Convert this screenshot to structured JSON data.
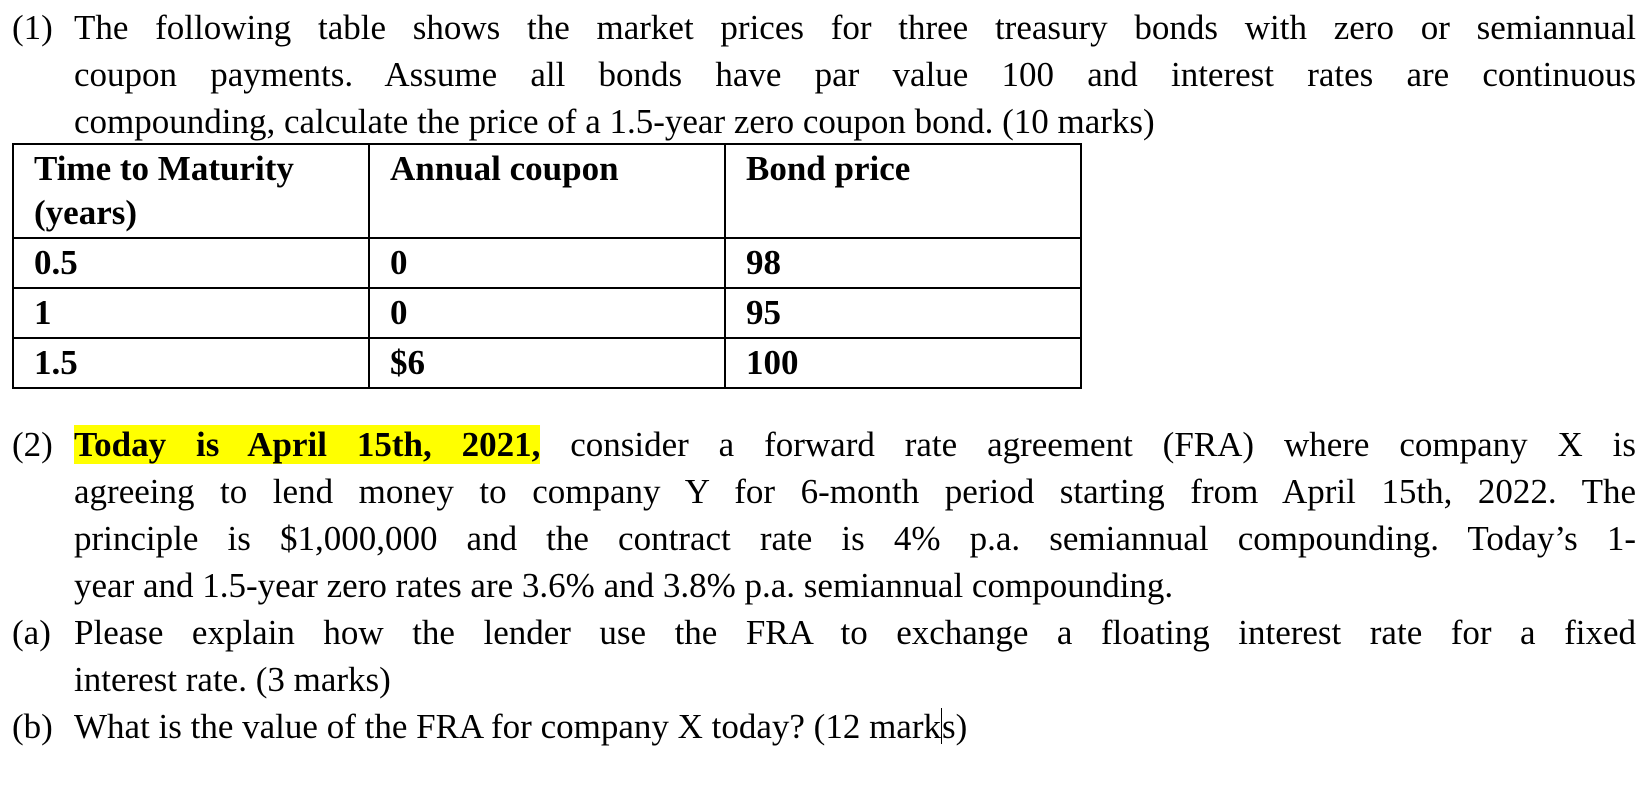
{
  "question1": {
    "number": "(1)",
    "line1": "The following table shows the market prices for three treasury bonds with zero or semiannual",
    "line2": "coupon payments. Assume all bonds have par value 100 and interest rates are continuous",
    "line3": "compounding, calculate the price of a 1.5-year zero coupon bond. (10 marks)"
  },
  "table": {
    "headers": [
      "Time to Maturity (years)",
      "Annual coupon",
      "Bond price"
    ],
    "rows": [
      [
        "0.5",
        "0",
        "98"
      ],
      [
        "1",
        "0",
        "95"
      ],
      [
        "1.5",
        "$6",
        "100"
      ]
    ]
  },
  "question2": {
    "number": "(2)",
    "highlight": "Today is April 15th, 2021,",
    "line1_rest": " consider a forward rate agreement (FRA) where company X is",
    "line2": "agreeing to lend money to company Y for 6-month period starting from April 15th, 2022. The",
    "line3": "principle is $1,000,000 and the contract rate is 4% p.a. semiannual compounding. Today’s 1-",
    "line4": "year and 1.5-year zero rates are 3.6% and 3.8% p.a. semiannual compounding.",
    "part_a": {
      "label": "(a)",
      "line1": "Please explain how the lender use the FRA to exchange a floating interest rate for a fixed",
      "line2": "interest rate. (3 marks)"
    },
    "part_b": {
      "label": "(b)",
      "text_before_cursor": "What is the value of the FRA for company X today? (12 mark",
      "text_after_cursor": "s)"
    }
  }
}
